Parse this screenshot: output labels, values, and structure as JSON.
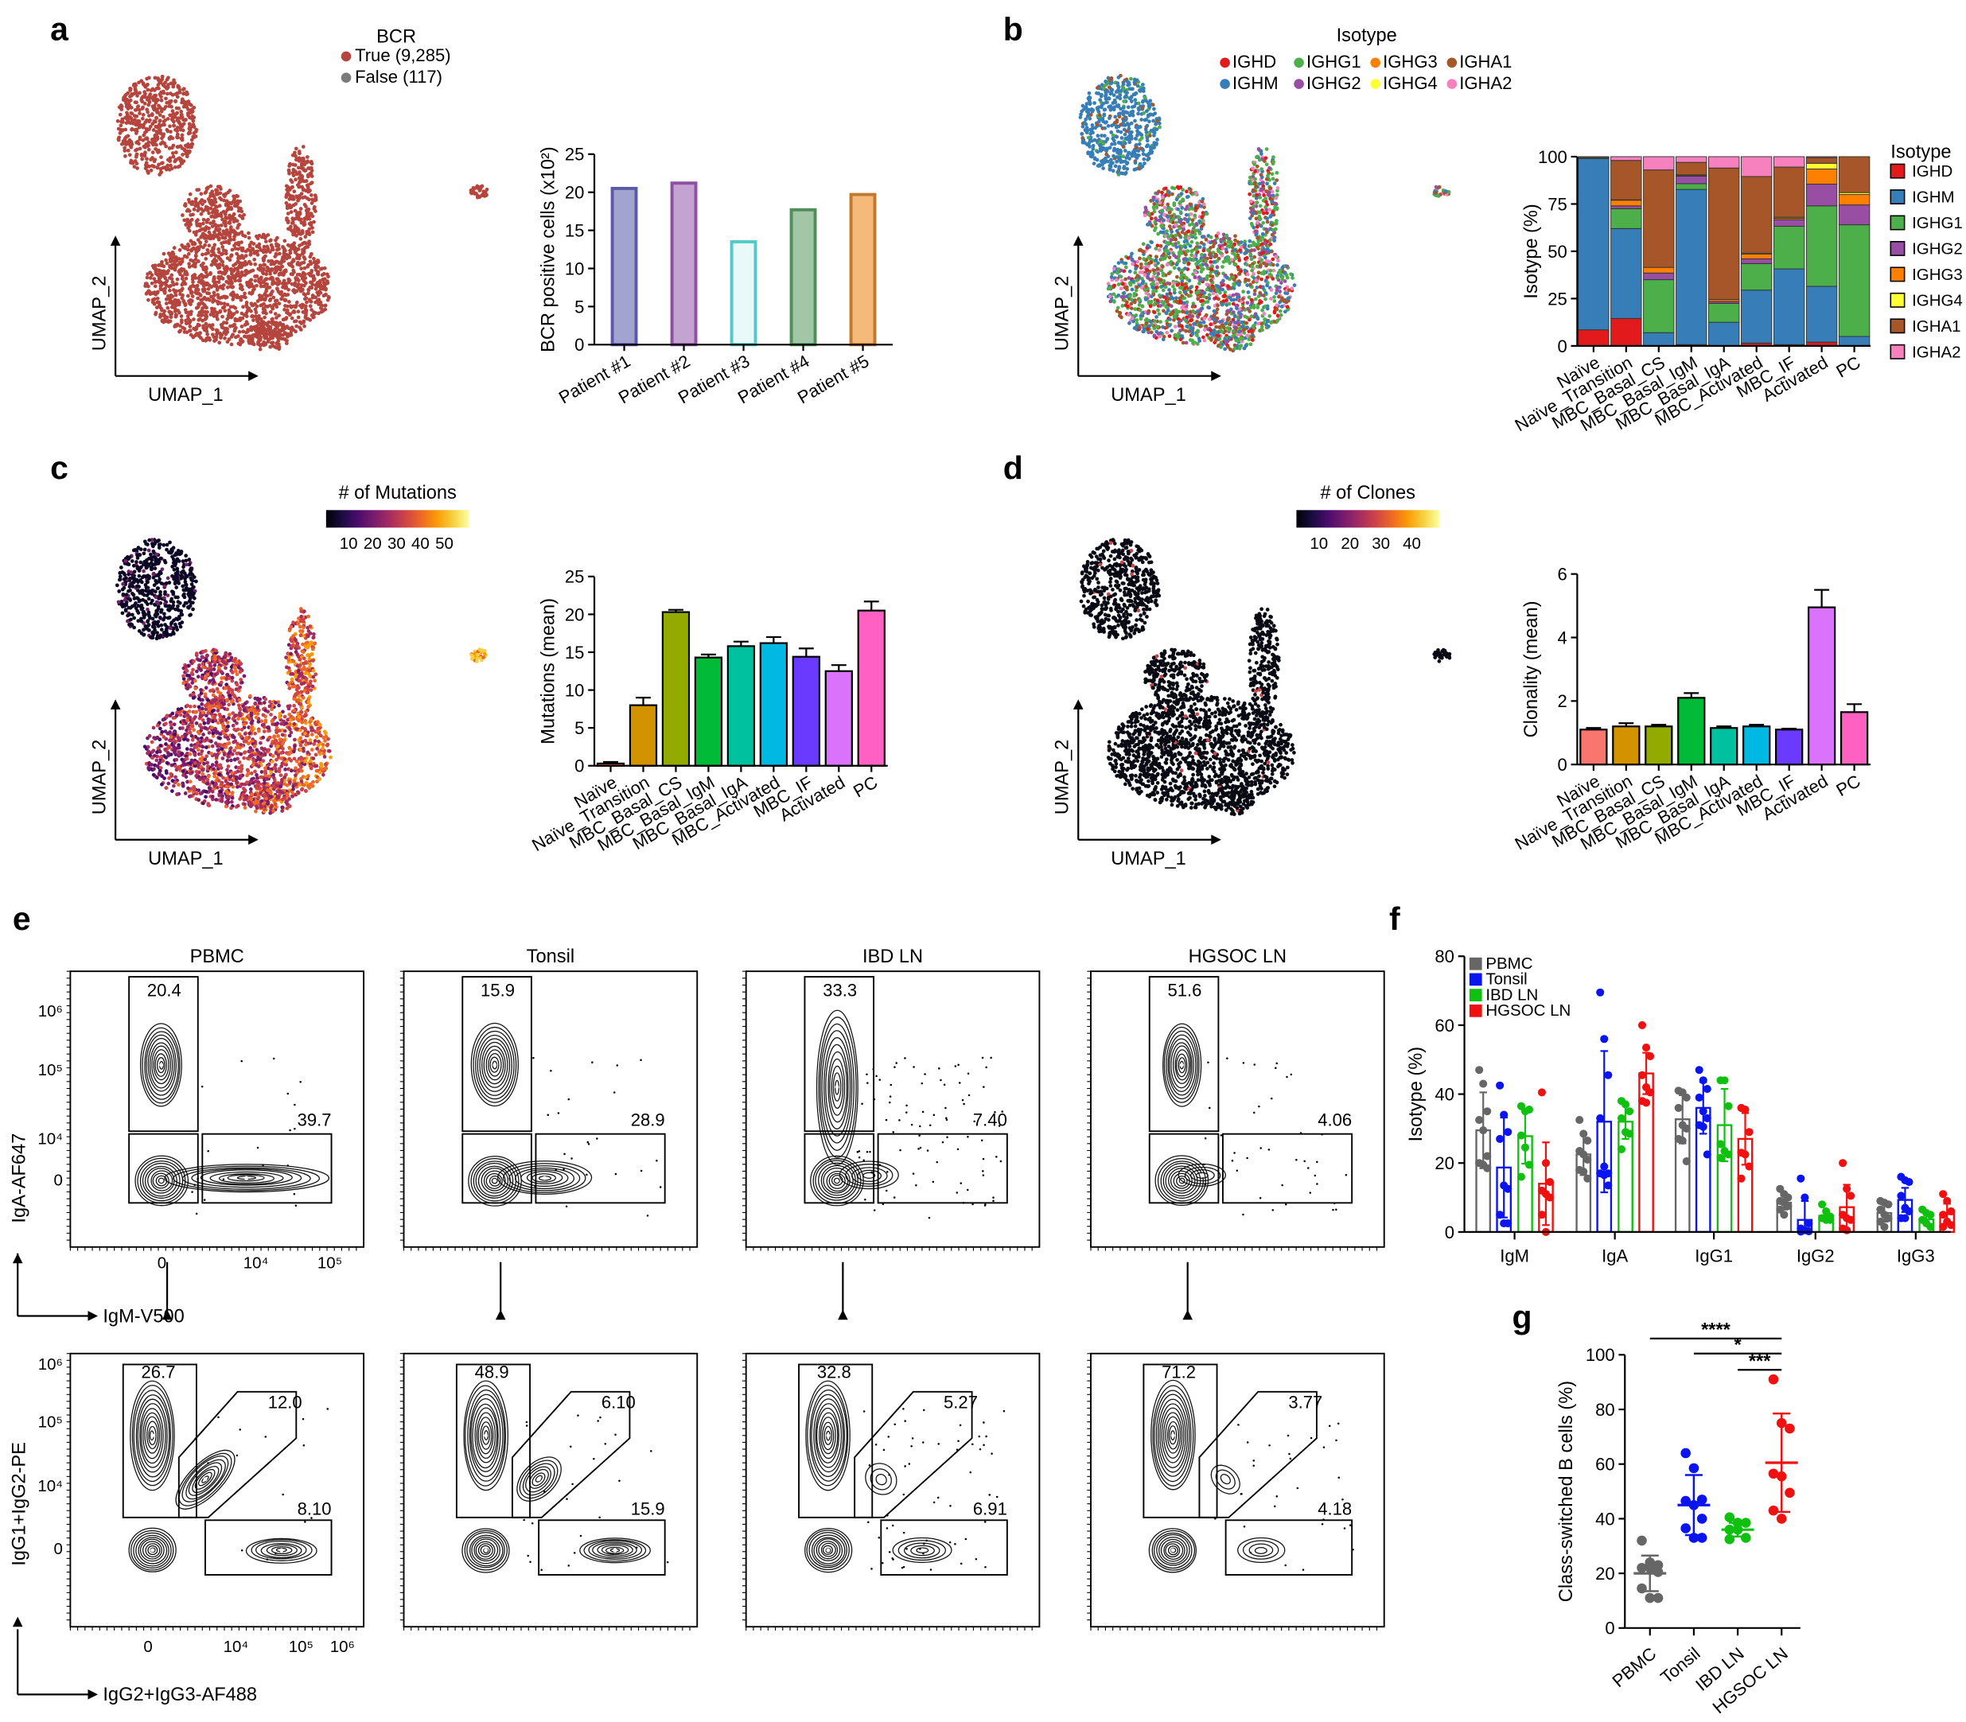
{
  "panel_labels": {
    "a": "a",
    "b": "b",
    "c": "c",
    "d": "d",
    "e": "e",
    "f": "f",
    "g": "g"
  },
  "umap": {
    "xlabel": "UMAP_1",
    "ylabel": "UMAP_2"
  },
  "panel_a": {
    "legend_title": "BCR",
    "legend": [
      {
        "label": "True (9,285)",
        "color": "#b5453d"
      },
      {
        "label": "False (117)",
        "color": "#7a7a7a"
      }
    ]
  },
  "panel_b": {
    "legend_title": "Isotype",
    "legend": [
      {
        "label": "IGHD",
        "color": "#e31a1c"
      },
      {
        "label": "IGHM",
        "color": "#377eb8"
      },
      {
        "label": "IGHG1",
        "color": "#4daf4a"
      },
      {
        "label": "IGHG2",
        "color": "#984ea3"
      },
      {
        "label": "IGHG3",
        "color": "#ff7f00"
      },
      {
        "label": "IGHG4",
        "color": "#ffff33"
      },
      {
        "label": "IGHA1",
        "color": "#a65628"
      },
      {
        "label": "IGHA2",
        "color": "#f781bf"
      }
    ]
  },
  "panel_c": {
    "colorbar_title": "# of Mutations",
    "ticks": [
      "10",
      "20",
      "30",
      "40",
      "50"
    ]
  },
  "panel_d": {
    "colorbar_title": "# of Clones",
    "ticks": [
      "10",
      "20",
      "30",
      "40"
    ]
  },
  "panel_e": {
    "samples": [
      "PBMC",
      "Tonsil",
      "IBD LN",
      "HGSOC LN"
    ],
    "top_ylabel": "IgA-AF647",
    "top_xlabel": "IgM-V500",
    "bottom_ylabel": "IgG1+IgG2-PE",
    "bottom_xlabel": "IgG2+IgG3-AF488",
    "top_yticks": [
      "10⁶",
      "10⁵",
      "10⁴",
      "0"
    ],
    "top_xticks": [
      "0",
      "10⁴",
      "10⁵"
    ],
    "bottom_yticks": [
      "10⁶",
      "10⁵",
      "10⁴",
      "0"
    ],
    "bottom_xticks": [
      "0",
      "10⁴",
      "10⁵",
      "10⁶"
    ],
    "top_gates": [
      {
        "iga": "20.4",
        "igm": "39.7"
      },
      {
        "iga": "15.9",
        "igm": "28.9"
      },
      {
        "iga": "33.3",
        "igm": "7.40"
      },
      {
        "iga": "51.6",
        "igm": "4.06"
      }
    ],
    "bottom_gates": [
      {
        "igg1_igg2": "26.7",
        "double": "12.0",
        "igg2_igg3": "8.10"
      },
      {
        "igg1_igg2": "48.9",
        "double": "6.10",
        "igg2_igg3": "15.9"
      },
      {
        "igg1_igg2": "32.8",
        "double": "5.27",
        "igg2_igg3": "6.91"
      },
      {
        "igg1_igg2": "71.2",
        "double": "3.77",
        "igg2_igg3": "4.18"
      }
    ]
  },
  "chart_data": [
    {
      "panel": "a",
      "type": "bar",
      "categories": [
        "Patient #1",
        "Patient #2",
        "Patient #3",
        "Patient #4",
        "Patient #5"
      ],
      "values": [
        20.5,
        21.2,
        13.5,
        17.7,
        19.7
      ],
      "fill_colors": [
        "#a3a3d0",
        "#c3a3cf",
        "#e9f8f8",
        "#a2c6a6",
        "#f5b97a"
      ],
      "edge_colors": [
        "#5a5aa8",
        "#8e4fa5",
        "#55c8c8",
        "#4f8f5a",
        "#c07a30"
      ],
      "ylabel": "BCR positive cells (x10²)",
      "ylim": [
        0,
        25
      ],
      "yticks": [
        "0",
        "5",
        "10",
        "15",
        "20",
        "25"
      ]
    },
    {
      "panel": "b",
      "type": "bar",
      "stacked": true,
      "categories": [
        "Naïve",
        "Naïve_Transition",
        "MBC_Basal_CS",
        "MBC_Basal_IgM",
        "MBC_Basal_IgA",
        "MBC_Activated",
        "MBC_IF",
        "Activated",
        "PC"
      ],
      "series": [
        {
          "name": "IGHD",
          "color": "#e31a1c",
          "values": [
            8.5,
            14.5,
            0,
            0.7,
            0,
            1.5,
            0.7,
            2,
            0
          ]
        },
        {
          "name": "IGHM",
          "color": "#377eb8",
          "values": [
            90.5,
            47.5,
            7,
            82,
            12.5,
            28,
            40,
            29.5,
            5
          ]
        },
        {
          "name": "IGHG1",
          "color": "#4daf4a",
          "values": [
            0.5,
            10.5,
            28,
            3,
            10,
            14,
            22.5,
            42.5,
            59
          ]
        },
        {
          "name": "IGHG2",
          "color": "#984ea3",
          "values": [
            0,
            1.5,
            3.5,
            4,
            1,
            2.5,
            3.5,
            11.5,
            10.5
          ]
        },
        {
          "name": "IGHG3",
          "color": "#ff7f00",
          "values": [
            0,
            3,
            3,
            0.5,
            1,
            2.5,
            0.8,
            8,
            5.5
          ]
        },
        {
          "name": "IGHG4",
          "color": "#ffff33",
          "values": [
            0,
            0.2,
            0,
            0.2,
            0,
            0.5,
            0.5,
            3,
            1
          ]
        },
        {
          "name": "IGHA1",
          "color": "#a65628",
          "values": [
            0.5,
            20.8,
            51.5,
            6.6,
            69.5,
            40.5,
            26.5,
            3,
            19
          ]
        },
        {
          "name": "IGHA2",
          "color": "#f781bf",
          "values": [
            0,
            2,
            7,
            3,
            6,
            10.5,
            5.5,
            0.5,
            0
          ]
        }
      ],
      "ylabel": "Isotype (%)",
      "ylim": [
        0,
        100
      ],
      "yticks": [
        "0",
        "25",
        "50",
        "75",
        "100"
      ],
      "legend_title": "Isotype",
      "legend": "right"
    },
    {
      "panel": "c",
      "type": "bar",
      "categories": [
        "Naïve",
        "Naïve_Transition",
        "MBC_Basal_CS",
        "MBC_Basal_IgM",
        "MBC_Basal_IgA",
        "MBC_Activated",
        "MBC_IF",
        "Activated",
        "PC"
      ],
      "values": [
        0.3,
        8,
        20.3,
        14.3,
        15.8,
        16.2,
        14.4,
        12.5,
        20.5
      ],
      "errors": [
        0.2,
        1,
        0.3,
        0.4,
        0.6,
        0.8,
        1.1,
        0.8,
        1.2
      ],
      "colors": [
        "#f8766d",
        "#d39200",
        "#93aa00",
        "#00ba38",
        "#00c19f",
        "#00b9e3",
        "#6a3bff",
        "#db72fb",
        "#ff61c3"
      ],
      "ylabel": "Mutations (mean)",
      "ylim": [
        0,
        25
      ],
      "yticks": [
        "0",
        "5",
        "10",
        "15",
        "20",
        "25"
      ]
    },
    {
      "panel": "d",
      "type": "bar",
      "categories": [
        "Naïve",
        "Naïve_Transition",
        "MBC_Basal_CS",
        "MBC_Basal_IgM",
        "MBC_Basal_IgA",
        "MBC_Activated",
        "MBC_IF",
        "Activated",
        "PC"
      ],
      "values": [
        1.1,
        1.2,
        1.2,
        2.1,
        1.15,
        1.2,
        1.1,
        4.95,
        1.65
      ],
      "errors": [
        0.05,
        0.1,
        0.05,
        0.15,
        0.05,
        0.05,
        0.03,
        0.55,
        0.25
      ],
      "colors": [
        "#f8766d",
        "#d39200",
        "#93aa00",
        "#00ba38",
        "#00c19f",
        "#00b9e3",
        "#6a3bff",
        "#db72fb",
        "#ff61c3"
      ],
      "ylabel": "Clonality (mean)",
      "ylim": [
        0,
        6
      ],
      "yticks": [
        "0",
        "2",
        "4",
        "6"
      ]
    },
    {
      "panel": "f",
      "type": "bar",
      "categories": [
        "IgM",
        "IgA",
        "IgG1",
        "IgG2",
        "IgG3"
      ],
      "ylabel": "Isotype (%)",
      "ylim": [
        0,
        80
      ],
      "yticks": [
        "0",
        "20",
        "40",
        "60",
        "80"
      ],
      "legend": "top-left",
      "series": [
        {
          "name": "PBMC",
          "color": "#666666",
          "means": [
            29.5,
            22.5,
            32.7,
            8.5,
            5.5
          ],
          "sd": [
            11,
            6,
            7,
            2,
            2.5
          ],
          "points": [
            [
              47,
              43,
              35,
              32.5,
              29.5,
              22,
              20,
              19.5,
              18.5
            ],
            [
              32.5,
              28.5,
              26.5,
              23.5,
              22.5,
              21,
              18,
              17.5,
              15.5
            ],
            [
              41,
              40.5,
              39,
              36,
              31,
              30,
              27,
              26.5,
              20.5
            ],
            [
              12.5,
              11,
              10,
              9,
              8.5,
              7.5,
              6.5,
              5
            ],
            [
              9,
              8.5,
              8,
              6.5,
              5,
              4,
              3,
              1.5
            ]
          ]
        },
        {
          "name": "Tonsil",
          "color": "#0a14f0",
          "means": [
            18.7,
            32,
            36,
            3.5,
            9.3
          ],
          "sd": [
            14.5,
            20.5,
            7.5,
            5.5,
            3.5
          ],
          "points": [
            [
              42.5,
              34,
              29,
              27,
              13.5,
              12.5,
              5,
              2.5,
              2.5
            ],
            [
              69.5,
              56,
              45.5,
              33,
              19,
              17,
              17,
              16.5,
              13.5
            ],
            [
              47,
              44,
              41.5,
              39,
              35,
              33,
              31,
              30.5,
              22.5
            ],
            [
              15.5,
              10,
              2.5,
              1,
              0.5,
              0.2,
              0.1
            ],
            [
              16,
              15,
              14.5,
              10.5,
              7,
              6,
              4,
              4
            ]
          ]
        },
        {
          "name": "IBD LN",
          "color": "#10c010",
          "means": [
            27.8,
            32,
            31,
            4.7,
            3.7
          ],
          "sd": [
            8,
            5,
            10.5,
            1.5,
            1.5
          ],
          "points": [
            [
              36.5,
              35,
              35.5,
              28,
              24.5,
              19.5,
              16
            ],
            [
              38,
              37,
              35,
              33,
              29,
              28.5,
              24
            ],
            [
              44,
              44,
              36.5,
              25.5,
              23.5,
              22.5,
              21.5
            ],
            [
              8,
              6,
              4.5,
              4,
              3.5,
              3.5
            ],
            [
              6.5,
              5.5,
              5,
              3.5,
              2.5,
              1.5
            ]
          ]
        },
        {
          "name": "HGSOC LN",
          "color": "#f01010",
          "means": [
            14,
            46,
            27,
            7.2,
            5.2
          ],
          "sd": [
            12,
            6,
            7.5,
            6.5,
            3
          ],
          "points": [
            [
              40.5,
              20,
              14.5,
              12,
              11,
              10,
              5,
              0
            ],
            [
              60,
              53.5,
              51,
              45.5,
              42,
              40.5,
              38,
              37.5
            ],
            [
              36,
              35.5,
              29,
              23,
              22.5,
              19,
              15.5
            ],
            [
              20,
              12.5,
              10.5,
              5,
              4,
              3.5,
              1,
              0.5
            ],
            [
              11,
              9,
              6,
              5,
              3,
              2,
              1.5
            ]
          ]
        }
      ]
    },
    {
      "panel": "g",
      "type": "scatter",
      "categories": [
        "PBMC",
        "Tonsil",
        "IBD LN",
        "HGSOC LN"
      ],
      "colors": [
        "#666666",
        "#0a14f0",
        "#10c010",
        "#f01010"
      ],
      "points": [
        [
          32,
          24,
          23,
          22,
          22,
          20.5,
          14.5,
          11,
          11
        ],
        [
          64,
          58.5,
          47,
          46.5,
          45,
          40,
          36.5,
          33,
          33
        ],
        [
          40.5,
          38.5,
          38.5,
          36,
          36,
          33,
          32.5
        ],
        [
          91,
          75,
          73,
          56.5,
          55.5,
          49.5,
          43,
          40
        ]
      ],
      "means": [
        20,
        45,
        36,
        60.5
      ],
      "sd": [
        6.5,
        11,
        2.5,
        18
      ],
      "ylabel": "Class-switched B cells (%)",
      "ylim": [
        0,
        100
      ],
      "yticks": [
        "0",
        "20",
        "40",
        "60",
        "80",
        "100"
      ],
      "significance": [
        {
          "from": "PBMC",
          "to": "HGSOC LN",
          "label": "****"
        },
        {
          "from": "Tonsil",
          "to": "HGSOC LN",
          "label": "*"
        },
        {
          "from": "IBD LN",
          "to": "HGSOC LN",
          "label": "***"
        }
      ]
    }
  ]
}
